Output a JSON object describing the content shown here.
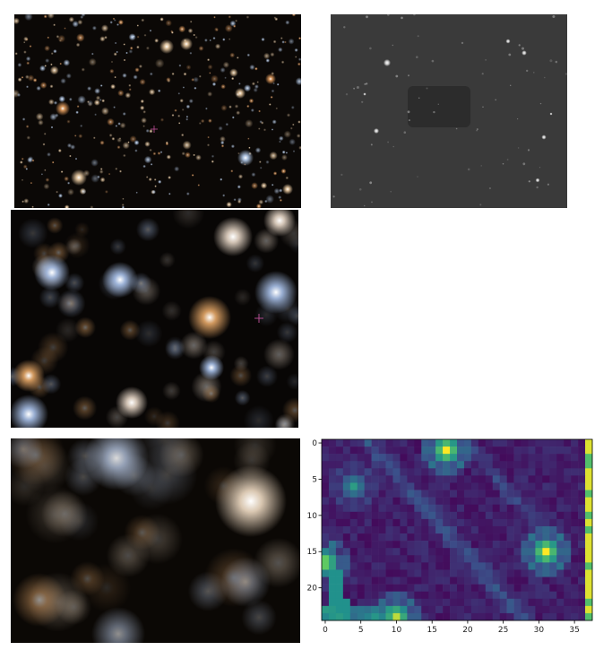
{
  "panels": {
    "wide_color_field": {
      "kind": "color-star-field"
    },
    "grayscale_field": {
      "kind": "grayscale-star-field"
    },
    "zoomed_color_field": {
      "kind": "color-star-field-zoom"
    },
    "pixelated_color_crop": {
      "kind": "color-pixel-crop"
    },
    "intensity_heatmap": {
      "kind": "heatmap",
      "colormap": "viridis"
    }
  },
  "colors": {
    "marker": "#c0509a",
    "heat_low": "#440154",
    "heat_mid": "#21918c",
    "heat_high": "#fde725"
  },
  "chart_data": {
    "type": "heatmap",
    "xlim": [
      0,
      37
    ],
    "ylim": [
      0,
      25
    ],
    "y_inverted": true,
    "xticks": [
      0,
      5,
      10,
      15,
      20,
      25,
      30,
      35
    ],
    "yticks": [
      0,
      5,
      10,
      15,
      20
    ],
    "colormap": "viridis",
    "hotspots": [
      {
        "x": 17,
        "y": 1,
        "level": 1.0
      },
      {
        "x": 31,
        "y": 15,
        "level": 1.0
      },
      {
        "x": 0,
        "y": 16.5,
        "level": 0.9
      },
      {
        "x": 10,
        "y": 24,
        "level": 0.9
      },
      {
        "x": 37,
        "y": 12,
        "level": 0.95
      },
      {
        "x": 4,
        "y": 6,
        "level": 0.55
      }
    ]
  }
}
